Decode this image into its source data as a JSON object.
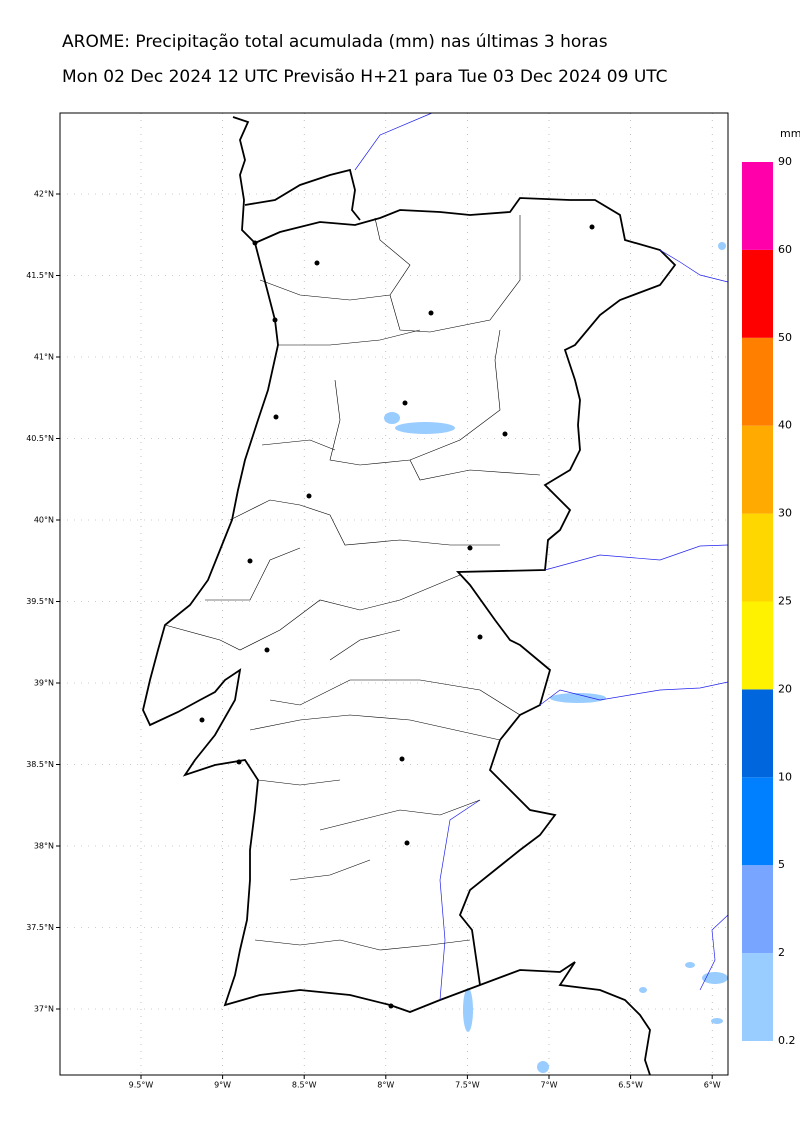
{
  "header": {
    "title": "AROME: Precipitação total acumulada (mm) nas últimas 3 horas",
    "subtitle": "Mon 02 Dec 2024 12 UTC Previsão H+21 para Tue 03 Dec 2024 09 UTC"
  },
  "map": {
    "lat_labels": [
      "42°N",
      "41.5°N",
      "41°N",
      "40.5°N",
      "40°N",
      "39.5°N",
      "39°N",
      "38.5°N",
      "38°N",
      "37.5°N",
      "37°N"
    ],
    "lon_labels": [
      "9.5°W",
      "9°W",
      "8.5°W",
      "8°W",
      "7.5°W",
      "7°W",
      "6.5°W",
      "6°W"
    ]
  },
  "colorbar": {
    "unit": "mm",
    "labels": [
      "0.2",
      "2",
      "5",
      "10",
      "20",
      "25",
      "30",
      "40",
      "50",
      "60",
      "90"
    ],
    "colors": [
      "#99ccff",
      "#77a5ff",
      "#0080ff",
      "#0066dd",
      "#fff200",
      "#ffd700",
      "#ffaa00",
      "#ff8000",
      "#ff0000",
      "#ff00aa"
    ]
  }
}
